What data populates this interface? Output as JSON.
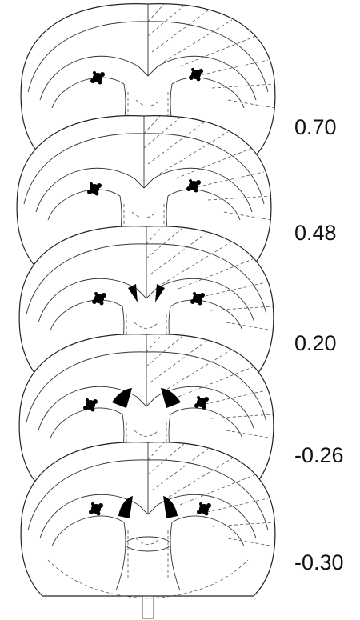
{
  "levels": [
    "0.70",
    "0.48",
    "0.20",
    "-0.26",
    "-0.30"
  ]
}
